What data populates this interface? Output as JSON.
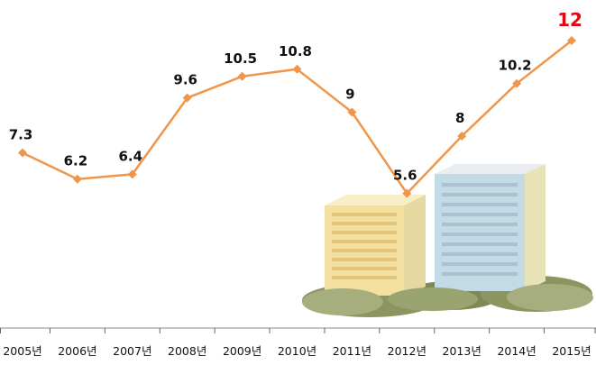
{
  "chart_data": {
    "type": "line",
    "categories": [
      "2005년",
      "2006년",
      "2007년",
      "2008년",
      "2009년",
      "2010년",
      "2011년",
      "2012년",
      "2013년",
      "2014년",
      "2015년"
    ],
    "values": [
      7.3,
      6.2,
      6.4,
      9.6,
      10.5,
      10.8,
      9,
      5.6,
      8,
      10.2,
      12
    ],
    "value_labels": [
      "7.3",
      "6.2",
      "6.4",
      "9.6",
      "10.5",
      "10.8",
      "9",
      "5.6",
      "8",
      "10.2",
      "12"
    ],
    "highlight_index": 10,
    "colors": {
      "line": "#f0964a",
      "marker": "#f0964a",
      "highlight_label": "#e30613",
      "axis": "#666666"
    },
    "ylim": [
      0,
      13
    ],
    "grid": false,
    "legend": "none"
  }
}
